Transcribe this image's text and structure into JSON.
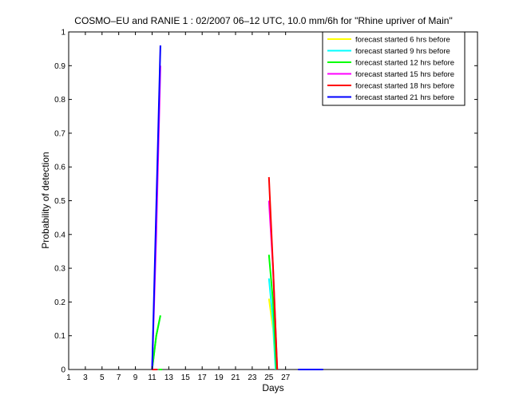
{
  "chart_data": {
    "type": "line",
    "title": "COSMO–EU and RANIE 1 : 02/2007 06–12 UTC, 10.0 mm/6h for \"Rhine upriver of Main\"",
    "xlabel": "Days",
    "ylabel": "Probability of detection",
    "xlim": [
      1,
      50
    ],
    "ylim": [
      0,
      1
    ],
    "xticks": [
      1,
      3,
      5,
      7,
      9,
      11,
      13,
      15,
      17,
      19,
      21,
      23,
      25,
      27
    ],
    "xtick_labels": [
      "1",
      "3",
      "5",
      "7",
      "9",
      "11",
      "13",
      "15",
      "17",
      "19",
      "21",
      "23",
      "25",
      "27"
    ],
    "yticks": [
      0,
      0.1,
      0.2,
      0.3,
      0.4,
      0.5,
      0.6,
      0.7,
      0.8,
      0.9,
      1
    ],
    "ytick_labels": [
      "0",
      "0.1",
      "0.2",
      "0.3",
      "0.4",
      "0.5",
      "0.6",
      "0.7",
      "0.8",
      "0.9",
      "1"
    ],
    "grid": false,
    "legend_position": "top-right",
    "series": [
      {
        "name": "forecast started 6 hrs before",
        "color": "#ffff00",
        "segments": [
          [
            [
              11,
              0
            ],
            [
              11.5,
              0.1
            ],
            [
              12,
              0.16
            ]
          ],
          [
            [
              11.8,
              0
            ],
            [
              12.2,
              0
            ]
          ],
          [
            [
              25,
              0.21
            ],
            [
              25.5,
              0.12
            ],
            [
              25.8,
              0
            ]
          ]
        ]
      },
      {
        "name": "forecast started 9 hrs before",
        "color": "#00ffff",
        "segments": [
          [
            [
              11,
              0
            ],
            [
              11.5,
              0.1
            ],
            [
              12,
              0.16
            ]
          ],
          [
            [
              11.8,
              0
            ],
            [
              12.2,
              0
            ]
          ],
          [
            [
              25,
              0.27
            ],
            [
              25.5,
              0.14
            ],
            [
              25.8,
              0
            ]
          ]
        ]
      },
      {
        "name": "forecast started 12 hrs before",
        "color": "#00ff00",
        "segments": [
          [
            [
              11,
              0
            ],
            [
              11.5,
              0.1
            ],
            [
              12,
              0.16
            ]
          ],
          [
            [
              11.8,
              0
            ],
            [
              12.2,
              0
            ]
          ],
          [
            [
              25,
              0.34
            ],
            [
              25.5,
              0.2
            ],
            [
              25.9,
              0
            ]
          ]
        ]
      },
      {
        "name": "forecast started 15 hrs before",
        "color": "#ff00ff",
        "segments": [
          [
            [
              11,
              0
            ],
            [
              11.5,
              0.4
            ],
            [
              12,
              0.9
            ]
          ],
          [
            [
              25,
              0.5
            ],
            [
              25.5,
              0.3
            ],
            [
              26,
              0
            ]
          ]
        ]
      },
      {
        "name": "forecast started 18 hrs before",
        "color": "#ff0000",
        "segments": [
          [
            [
              11,
              0
            ],
            [
              11.3,
              0
            ],
            [
              11.6,
              0
            ]
          ],
          [
            [
              25,
              0.57
            ],
            [
              25.5,
              0.3
            ],
            [
              26,
              0
            ]
          ]
        ]
      },
      {
        "name": "forecast started 21 hrs before",
        "color": "#0000ff",
        "segments": [
          [
            [
              11,
              0
            ],
            [
              11.5,
              0.48
            ],
            [
              12,
              0.96
            ]
          ],
          [
            [
              28.5,
              0
            ],
            [
              31.5,
              0
            ]
          ]
        ]
      }
    ]
  }
}
